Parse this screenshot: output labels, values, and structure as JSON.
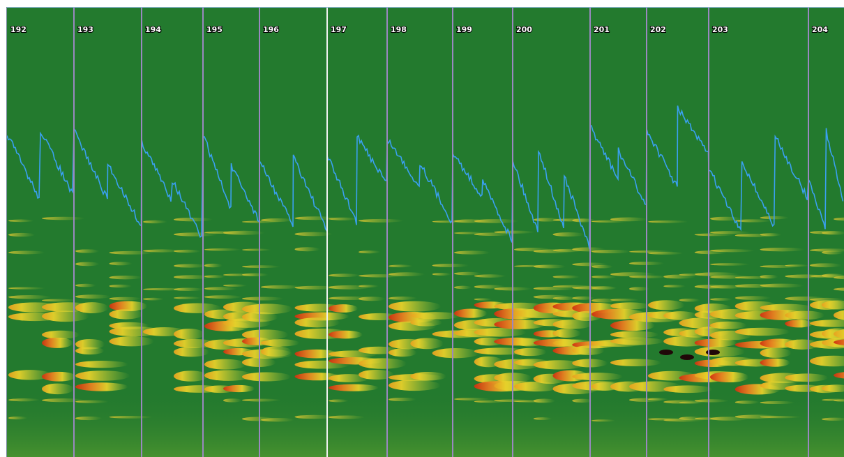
{
  "measures": [
    "192",
    "193",
    "194",
    "195",
    "196",
    "197",
    "198",
    "199",
    "200",
    "201",
    "202",
    "203",
    "204"
  ]
}
